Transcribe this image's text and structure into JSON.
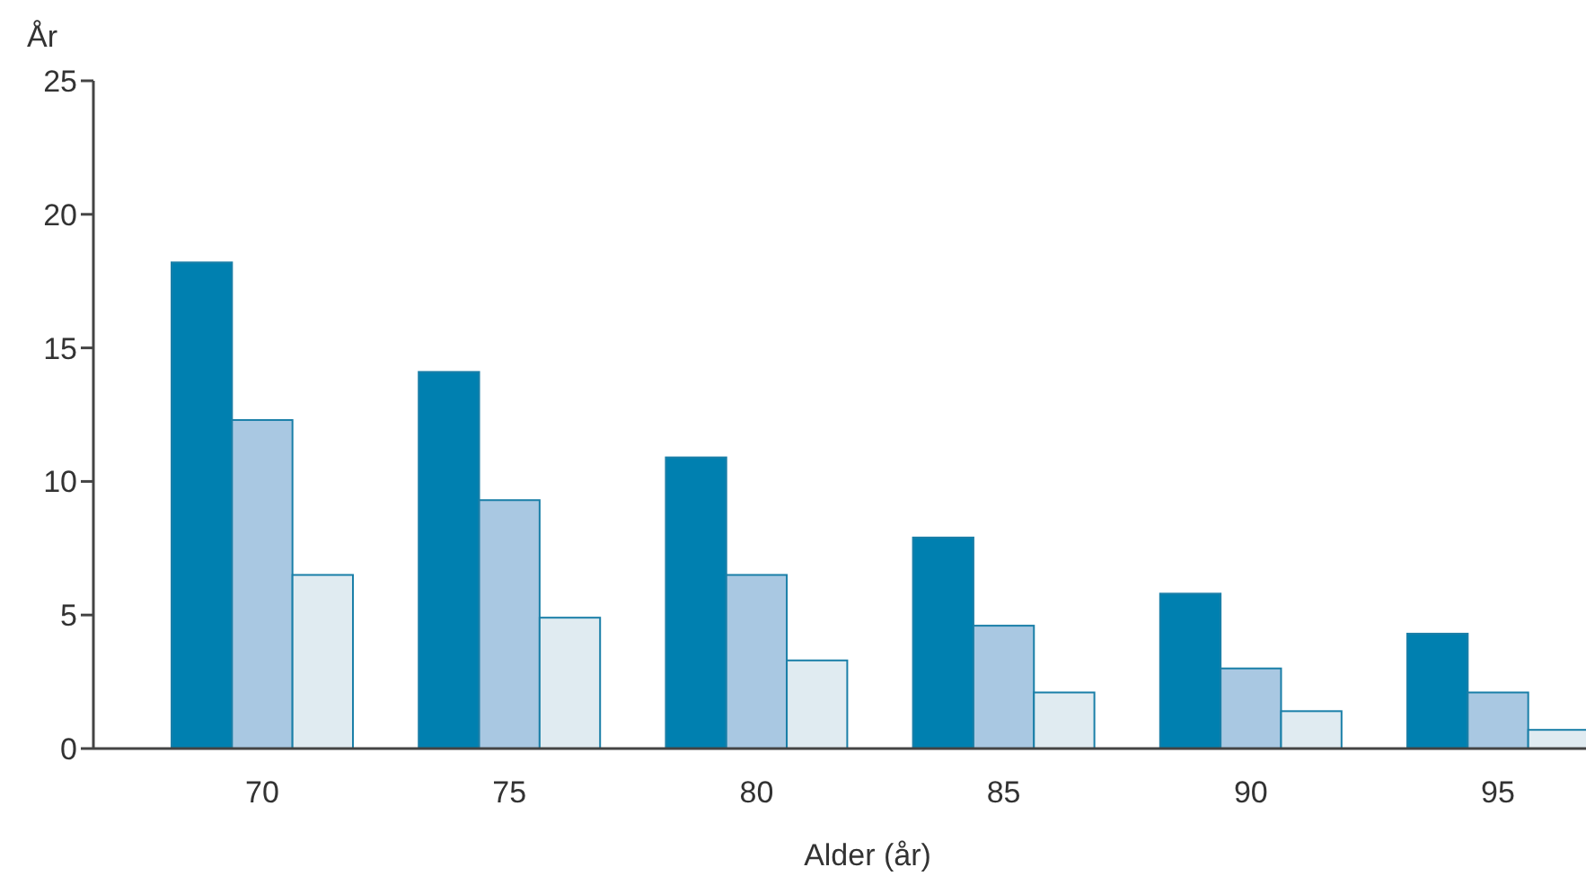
{
  "chart_data": {
    "type": "bar",
    "xlabel": "Alder (år)",
    "ylabel": "År",
    "categories": [
      "70",
      "75",
      "80",
      "85",
      "90",
      "95"
    ],
    "series": [
      {
        "color": "#0080b0",
        "values": [
          18.2,
          14.1,
          10.9,
          7.9,
          5.8,
          4.3
        ]
      },
      {
        "color": "#a9c8e2",
        "values": [
          12.3,
          9.3,
          6.5,
          4.6,
          3.0,
          2.1
        ]
      },
      {
        "color": "#e0ebf1",
        "values": [
          6.5,
          4.9,
          3.3,
          2.1,
          1.4,
          0.7
        ]
      }
    ],
    "ylim": [
      0,
      25
    ],
    "yticks": [
      0,
      5,
      10,
      15,
      20,
      25
    ],
    "grid": false
  }
}
